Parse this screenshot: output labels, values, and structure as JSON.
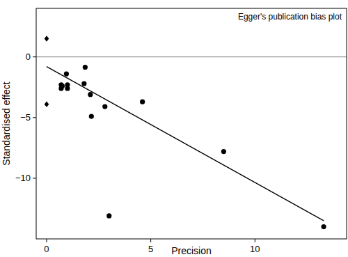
{
  "chart_data": {
    "type": "scatter",
    "title": "Egger's publication bias plot",
    "x_label": "Precision",
    "y_label": "Standardised effect",
    "xlim": [
      -0.5,
      14.4
    ],
    "ylim": [
      -15,
      4
    ],
    "xticks": [
      0,
      5,
      10
    ],
    "yticks": [
      0,
      {
        "value": -5,
        "label": "−5"
      },
      {
        "value": -10,
        "label": "−10"
      }
    ],
    "series": [
      {
        "type": "scatter",
        "marker": "circle",
        "color": "#000000",
        "x": [
          0.7,
          0.7,
          0.75,
          0.95,
          1.0,
          1.0,
          1.8,
          1.85,
          2.1,
          2.15,
          2.8,
          3.0,
          4.6,
          8.5,
          13.3
        ],
        "values": [
          -2.3,
          -2.6,
          -2.4,
          -1.4,
          -2.3,
          -2.6,
          -2.2,
          -0.85,
          -3.1,
          -4.9,
          -4.1,
          -13.1,
          -3.7,
          -7.8,
          -14.0
        ]
      },
      {
        "type": "scatter",
        "marker": "diamond",
        "color": "#000000",
        "x": [
          0,
          0
        ],
        "values": [
          1.5,
          -3.9
        ]
      },
      {
        "type": "line",
        "color": "#000000",
        "line_style": "solid",
        "x": [
          0,
          13.3
        ],
        "values": [
          -0.8,
          -13.5
        ]
      },
      {
        "type": "line",
        "color": "#999999",
        "line_style": "solid",
        "x": [
          -0.5,
          14.4
        ],
        "values": [
          0,
          0
        ]
      }
    ]
  }
}
